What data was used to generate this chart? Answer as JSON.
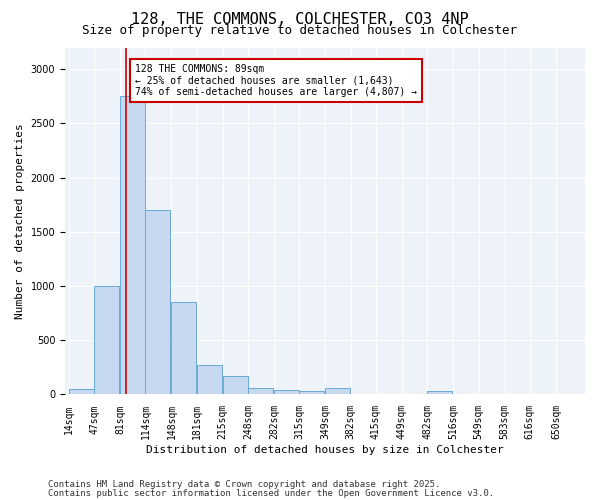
{
  "title_line1": "128, THE COMMONS, COLCHESTER, CO3 4NP",
  "title_line2": "Size of property relative to detached houses in Colchester",
  "xlabel": "Distribution of detached houses by size in Colchester",
  "ylabel": "Number of detached properties",
  "bar_color": "#c6d9f0",
  "bar_edge_color": "#6aaad4",
  "background_color": "#eef2f9",
  "bins": [
    14,
    47,
    81,
    114,
    148,
    181,
    215,
    248,
    282,
    315,
    349,
    382,
    415,
    449,
    482,
    516,
    549,
    583,
    616,
    650,
    683
  ],
  "values": [
    50,
    1000,
    2750,
    1700,
    850,
    270,
    170,
    60,
    40,
    30,
    60,
    0,
    0,
    0,
    30,
    0,
    0,
    0,
    0,
    0
  ],
  "property_size": 89,
  "red_line_color": "#cc0000",
  "annotation_text": "128 THE COMMONS: 89sqm\n← 25% of detached houses are smaller (1,643)\n74% of semi-detached houses are larger (4,807) →",
  "annotation_box_color": "#ffffff",
  "annotation_box_edge": "#cc0000",
  "ylim": [
    0,
    3200
  ],
  "yticks": [
    0,
    500,
    1000,
    1500,
    2000,
    2500,
    3000
  ],
  "xlim_left": 14,
  "xlim_right": 683,
  "footnote1": "Contains HM Land Registry data © Crown copyright and database right 2025.",
  "footnote2": "Contains public sector information licensed under the Open Government Licence v3.0.",
  "title_fontsize": 11,
  "subtitle_fontsize": 9,
  "tick_label_fontsize": 7,
  "axis_label_fontsize": 8,
  "annotation_fontsize": 7,
  "footnote_fontsize": 6.5
}
